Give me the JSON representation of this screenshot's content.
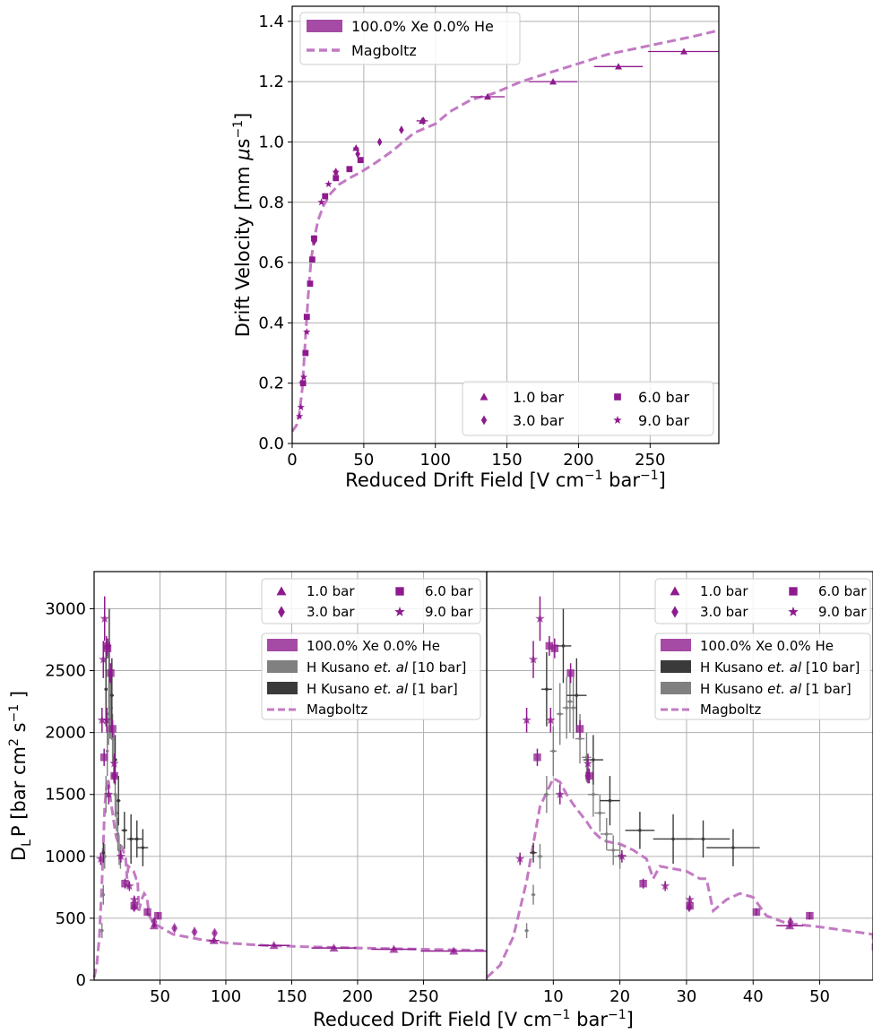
{
  "colors": {
    "xe": "#8e1a8e",
    "xe_fill": "#a54aa5",
    "magboltz": "#c37ac3",
    "kusano_10": "#808080",
    "kusano_1": "#3a3a3a",
    "grid": "#b0b0b0"
  },
  "chart_data": [
    {
      "id": "drift_velocity",
      "type": "scatter",
      "xlabel_main": "Reduced Drift Field [V cm",
      "xlabel_sup1": "−1",
      "xlabel_mid": " bar",
      "xlabel_sup2": "−1",
      "xlabel_end": "]",
      "ylabel_main": "Drift Velocity [mm ",
      "ylabel_mu": "μ",
      "ylabel_s": "s",
      "ylabel_sup": "−1",
      "ylabel_end": "]",
      "xlim": [
        0,
        298
      ],
      "ylim": [
        0,
        1.45
      ],
      "xticks": [
        "0",
        "50",
        "100",
        "150",
        "200",
        "250"
      ],
      "xtick_values": [
        0,
        50,
        100,
        150,
        200,
        250
      ],
      "yticks": [
        "0.0",
        "0.2",
        "0.4",
        "0.6",
        "0.8",
        "1.0",
        "1.2",
        "1.4"
      ],
      "ytick_values": [
        0,
        0.2,
        0.4,
        0.6,
        0.8,
        1.0,
        1.2,
        1.4
      ],
      "grid": true,
      "legend_top": {
        "placement": "top-left",
        "entries": [
          {
            "label": "100.0% Xe 0.0% He",
            "style": "patch"
          },
          {
            "label": "Magboltz",
            "style": "dashed"
          }
        ]
      },
      "legend_pressure": {
        "placement": "bottom-right",
        "entries": [
          {
            "label": "1.0 bar",
            "marker": "triangle"
          },
          {
            "label": "6.0 bar",
            "marker": "square"
          },
          {
            "label": "3.0 bar",
            "marker": "diamond"
          },
          {
            "label": "9.0 bar",
            "marker": "star"
          }
        ]
      },
      "magboltz": {
        "x": [
          0,
          3,
          5,
          7,
          9,
          11,
          13,
          15,
          18,
          22,
          27,
          33,
          40,
          48,
          58,
          70,
          85,
          95,
          100,
          110,
          125,
          140,
          160,
          180,
          200,
          220,
          240,
          260,
          280,
          298
        ],
        "y": [
          0.04,
          0.06,
          0.1,
          0.18,
          0.33,
          0.48,
          0.6,
          0.67,
          0.74,
          0.79,
          0.83,
          0.86,
          0.88,
          0.9,
          0.93,
          0.97,
          1.03,
          1.05,
          1.06,
          1.1,
          1.14,
          1.16,
          1.2,
          1.23,
          1.26,
          1.29,
          1.31,
          1.33,
          1.35,
          1.37
        ]
      },
      "series": [
        {
          "name": "1.0 bar",
          "marker": "triangle",
          "x": [
            44.6,
            90.8,
            136.5,
            182.2,
            227.9,
            273.6
          ],
          "y": [
            0.98,
            1.07,
            1.15,
            1.2,
            1.25,
            1.3
          ],
          "xerr": [
            2,
            4,
            12,
            17,
            17,
            25
          ]
        },
        {
          "name": "3.0 bar",
          "marker": "diamond",
          "x": [
            15.3,
            30.5,
            45.8,
            61.1,
            76.3,
            91.6
          ],
          "y": [
            0.67,
            0.9,
            0.96,
            1.0,
            1.04,
            1.07
          ],
          "xerr": [
            0,
            0,
            0,
            0,
            0,
            0
          ]
        },
        {
          "name": "6.0 bar",
          "marker": "square",
          "x": [
            7.6,
            9.3,
            10.2,
            12.5,
            14.0,
            15.3,
            23.0,
            30.5,
            40.0,
            47.7
          ],
          "y": [
            0.2,
            0.3,
            0.42,
            0.53,
            0.61,
            0.68,
            0.82,
            0.88,
            0.91,
            0.94
          ],
          "xerr": [
            0,
            0,
            0,
            0,
            0,
            0,
            0,
            0,
            0,
            0
          ]
        },
        {
          "name": "9.0 bar",
          "marker": "star",
          "x": [
            5.1,
            6.1,
            7.1,
            8.1,
            10.2,
            15.3,
            20.4,
            25.4,
            30.5
          ],
          "y": [
            0.09,
            0.12,
            0.2,
            0.22,
            0.37,
            0.68,
            0.8,
            0.86,
            0.9
          ],
          "xerr": [
            0,
            0,
            0,
            0,
            0,
            0,
            0,
            0,
            0
          ]
        }
      ]
    },
    {
      "id": "diffusion_full",
      "type": "scatter",
      "ylabel_main": "D",
      "ylabel_sub": "L",
      "ylabel_mid": "P [bar cm",
      "ylabel_sup1": "2",
      "ylabel_mid2": " s",
      "ylabel_sup2": "−1",
      "ylabel_end": " ]",
      "xlim": [
        0,
        298
      ],
      "ylim": [
        0,
        3300
      ],
      "xticks": [
        "50",
        "100",
        "150",
        "200",
        "250"
      ],
      "xtick_values": [
        50,
        100,
        150,
        200,
        250
      ],
      "yticks": [
        "0",
        "500",
        "1000",
        "1500",
        "2000",
        "2500",
        "3000"
      ],
      "ytick_values": [
        0,
        500,
        1000,
        1500,
        2000,
        2500,
        3000
      ],
      "grid": true,
      "legend_pressure": {
        "placement": "top-right",
        "entries": [
          {
            "label": "1.0 bar",
            "marker": "triangle"
          },
          {
            "label": "6.0 bar",
            "marker": "square"
          },
          {
            "label": "3.0 bar",
            "marker": "diamond"
          },
          {
            "label": "9.0 bar",
            "marker": "star"
          }
        ]
      },
      "legend_sources": {
        "placement": "top-right",
        "entries": [
          {
            "label_main": "100.0% Xe 0.0% He",
            "label_ital": "",
            "label_end": "",
            "style": "patch",
            "color_key": "xe_fill"
          },
          {
            "label_main": "H Kusano ",
            "label_ital": "et. al",
            "label_end": " [10 bar]",
            "style": "patch",
            "color_key": "kusano_10"
          },
          {
            "label_main": "H Kusano ",
            "label_ital": "et. al",
            "label_end": " [1 bar]",
            "style": "patch",
            "color_key": "kusano_1"
          },
          {
            "label_main": "Magboltz",
            "label_ital": "",
            "label_end": "",
            "style": "dashed",
            "color_key": "magboltz"
          }
        ]
      }
    },
    {
      "id": "diffusion_zoom",
      "type": "scatter",
      "xlim": [
        0,
        58
      ],
      "ylim": [
        0,
        3300
      ],
      "xticks": [
        "10",
        "20",
        "30",
        "40",
        "50"
      ],
      "xtick_values": [
        10,
        20,
        30,
        40,
        50
      ],
      "grid": true,
      "legend_pressure": {
        "placement": "top-right",
        "entries": [
          {
            "label": "1.0 bar",
            "marker": "triangle"
          },
          {
            "label": "6.0 bar",
            "marker": "square"
          },
          {
            "label": "3.0 bar",
            "marker": "diamond"
          },
          {
            "label": "9.0 bar",
            "marker": "star"
          }
        ]
      },
      "legend_sources": {
        "placement": "top-right",
        "entries": [
          {
            "label_main": "100.0% Xe 0.0% He",
            "label_ital": "",
            "label_end": "",
            "style": "patch",
            "color_key": "xe_fill"
          },
          {
            "label_main": "H Kusano ",
            "label_ital": "et. al",
            "label_end": " [10 bar]",
            "style": "patch",
            "color_key": "kusano_1"
          },
          {
            "label_main": "H Kusano ",
            "label_ital": "et. al",
            "label_end": " [1 bar]",
            "style": "patch",
            "color_key": "kusano_10"
          },
          {
            "label_main": "Magboltz",
            "label_ital": "",
            "label_end": "",
            "style": "dashed",
            "color_key": "magboltz"
          }
        ]
      }
    }
  ],
  "diffusion_shared": {
    "xlabel_main": "Reduced Drift Field [V cm",
    "xlabel_sup1": "−1",
    "xlabel_mid": " bar",
    "xlabel_sup2": "−1",
    "xlabel_end": "]",
    "magboltz": {
      "x": [
        0,
        2,
        4,
        6,
        8,
        10,
        11,
        12,
        13,
        14,
        15,
        16,
        17,
        18,
        20,
        22,
        24,
        25,
        26,
        28,
        30,
        32,
        33,
        34,
        36,
        38,
        40,
        42,
        45,
        50,
        60,
        80,
        100,
        130,
        160,
        200,
        250,
        298
      ],
      "y": [
        20,
        120,
        350,
        800,
        1400,
        1630,
        1600,
        1500,
        1420,
        1350,
        1280,
        1200,
        1150,
        1120,
        1100,
        1050,
        980,
        820,
        920,
        900,
        880,
        820,
        820,
        560,
        650,
        700,
        670,
        520,
        460,
        430,
        370,
        330,
        300,
        280,
        270,
        260,
        250,
        240
      ]
    },
    "series": [
      {
        "name": "1.0 bar",
        "marker": "triangle",
        "x": [
          45.5,
          91.0,
          136.5,
          182.0,
          227.5,
          273.0
        ],
        "y": [
          440,
          320,
          280,
          260,
          250,
          235
        ],
        "xerr": [
          2,
          4,
          12,
          17,
          17,
          25
        ],
        "yerr": [
          20,
          20,
          15,
          15,
          15,
          15
        ]
      },
      {
        "name": "3.0 bar",
        "marker": "diamond",
        "x": [
          15.2,
          30.4,
          45.6,
          61.0,
          76.2,
          91.5
        ],
        "y": [
          1650,
          590,
          470,
          420,
          390,
          380
        ],
        "xerr": [
          0,
          0,
          0,
          0,
          0,
          0
        ],
        "yerr": [
          60,
          30,
          25,
          20,
          20,
          20
        ]
      },
      {
        "name": "6.0 bar",
        "marker": "square",
        "x": [
          7.6,
          9.4,
          10.2,
          12.6,
          14.0,
          15.4,
          23.5,
          30.5,
          40.5,
          48.5
        ],
        "y": [
          1800,
          2700,
          2680,
          2480,
          2030,
          1650,
          780,
          600,
          550,
          520
        ],
        "xerr": [
          0,
          0,
          0,
          0,
          0,
          0,
          0,
          0,
          0,
          0
        ],
        "yerr": [
          70,
          80,
          80,
          80,
          70,
          60,
          40,
          30,
          30,
          30
        ]
      },
      {
        "name": "9.0 bar",
        "marker": "star",
        "x": [
          5.0,
          6.0,
          7.0,
          8.0,
          9.6,
          11.0,
          15.2,
          20.3,
          26.8,
          30.5
        ],
        "y": [
          980,
          2100,
          2590,
          2920,
          2100,
          1500,
          1750,
          1000,
          760,
          650
        ],
        "xerr": [
          0,
          0,
          0,
          0,
          0,
          0,
          0,
          0,
          0,
          0
        ],
        "yerr": [
          50,
          100,
          150,
          180,
          100,
          80,
          80,
          50,
          40,
          30
        ]
      }
    ],
    "kusano_10": {
      "x": [
        6.0,
        7.0,
        8.0,
        9.0,
        10.0,
        11.0,
        12.0,
        12.5,
        13.0,
        14.0,
        15.0,
        16.0,
        17.0,
        18.0,
        19.0,
        20.0
      ],
      "y": [
        400,
        690,
        1000,
        1500,
        1850,
        2150,
        2200,
        2250,
        2200,
        1950,
        1800,
        1500,
        1350,
        1180,
        1050,
        1000
      ],
      "xerr": [
        0.3,
        0.3,
        0.4,
        0.4,
        0.5,
        0.5,
        0.6,
        0.6,
        0.6,
        0.7,
        0.7,
        0.8,
        0.8,
        0.9,
        0.9,
        1.0
      ],
      "yerr": [
        60,
        80,
        100,
        150,
        200,
        250,
        250,
        250,
        250,
        200,
        200,
        180,
        150,
        130,
        120,
        100
      ]
    },
    "kusano_1": {
      "x": [
        7.0,
        9.0,
        11.5,
        13.5,
        16.0,
        18.5,
        23.0,
        28.0,
        32.5,
        37.0
      ],
      "y": [
        1030,
        2350,
        2700,
        2300,
        1780,
        1450,
        1210,
        1140,
        1140,
        1070
      ],
      "xerr": [
        0.5,
        0.8,
        1.2,
        1.5,
        1.5,
        1.5,
        2.2,
        3.0,
        4.0,
        4.0
      ],
      "yerr": [
        80,
        300,
        300,
        300,
        200,
        200,
        150,
        200,
        150,
        150
      ]
    }
  }
}
